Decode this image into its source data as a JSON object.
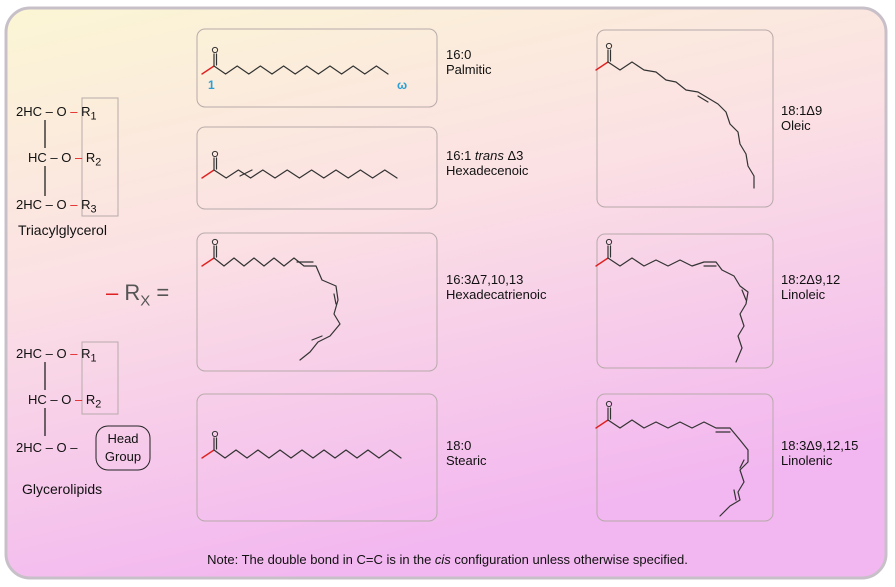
{
  "colors": {
    "accent_red": "#e02020",
    "omega_blue": "#2a9fd6"
  },
  "left": {
    "tag": {
      "rows": [
        {
          "prefix": "2HC",
          "o": "O",
          "r": "R",
          "sub": "1"
        },
        {
          "prefix": "HC",
          "o": "O",
          "r": "R",
          "sub": "2"
        },
        {
          "prefix": "2HC",
          "o": "O",
          "r": "R",
          "sub": "3"
        }
      ],
      "title": "Triacylglycerol"
    },
    "rx": {
      "r": "R",
      "sub": "X",
      "eq": "="
    },
    "glycerolipid": {
      "rows": [
        {
          "prefix": "2HC",
          "o": "O",
          "r": "R",
          "sub": "1"
        },
        {
          "prefix": "HC",
          "o": "O",
          "r": "R",
          "sub": "2"
        },
        {
          "prefix": "2HC",
          "o": "O"
        }
      ],
      "head_group": [
        "Head",
        "Group"
      ],
      "title": "Glycerolipids"
    }
  },
  "acids": [
    {
      "id": "palmitic",
      "formula": "16:0",
      "name": "Palmitic",
      "carbon_one": "1",
      "omega": "ω"
    },
    {
      "id": "hexadecenoic",
      "formula_pre": "16:1 ",
      "formula_it": "trans",
      "formula_post": " Δ3",
      "name": "Hexadecenoic"
    },
    {
      "id": "hexadecatrienoic",
      "formula": "16:3Δ7,10,13",
      "name": "Hexadecatrienoic"
    },
    {
      "id": "stearic",
      "formula": "18:0",
      "name": "Stearic"
    },
    {
      "id": "oleic",
      "formula": "18:1Δ9",
      "name": "Oleic"
    },
    {
      "id": "linoleic",
      "formula": "18:2Δ9,12",
      "name": "Linoleic"
    },
    {
      "id": "linolenic",
      "formula": "18:3Δ9,12,15",
      "name": "Linolenic"
    }
  ],
  "note": {
    "pre": "Note: The double bond in C=C is  in the ",
    "it": "cis",
    "post": "  configuration unless otherwise specified."
  }
}
